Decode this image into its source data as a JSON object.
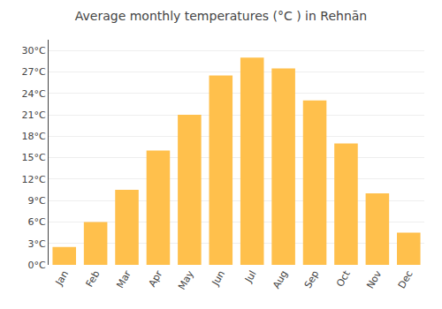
{
  "chart_data": {
    "type": "bar",
    "title": "Average monthly temperatures (°C ) in Rehnān",
    "categories": [
      "Jan",
      "Feb",
      "Mar",
      "Apr",
      "May",
      "Jun",
      "Jul",
      "Aug",
      "Sep",
      "Oct",
      "Nov",
      "Dec"
    ],
    "values": [
      2.5,
      6.0,
      10.5,
      16.0,
      21.0,
      26.5,
      29.0,
      27.5,
      23.0,
      17.0,
      10.0,
      4.5
    ],
    "color": "#FFC04C",
    "ylim": [
      0,
      31.5
    ],
    "yticks": [
      {
        "value": 0,
        "label": "0°C"
      },
      {
        "value": 3,
        "label": "3°C"
      },
      {
        "value": 6,
        "label": "6°C"
      },
      {
        "value": 9,
        "label": "9°C"
      },
      {
        "value": 12,
        "label": "12°C"
      },
      {
        "value": 15,
        "label": "15°C"
      },
      {
        "value": 18,
        "label": "18°C"
      },
      {
        "value": 21,
        "label": "21°C"
      },
      {
        "value": 24,
        "label": "24°C"
      },
      {
        "value": 27,
        "label": "27°C"
      },
      {
        "value": 30,
        "label": "30°C"
      }
    ],
    "grid": true
  }
}
